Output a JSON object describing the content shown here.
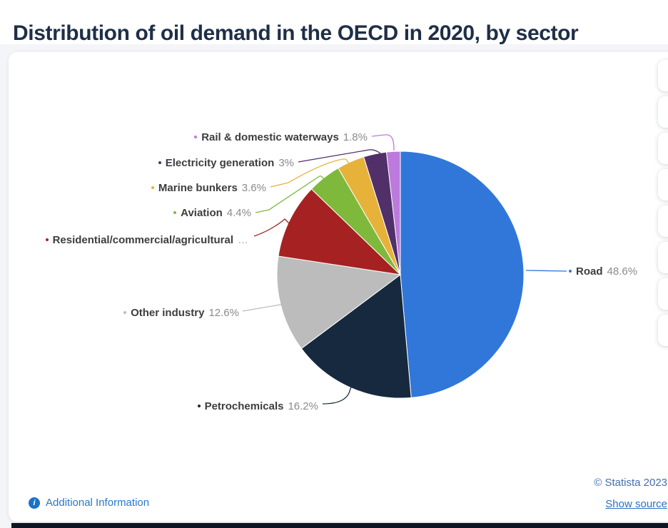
{
  "page": {
    "title": "Distribution of oil demand in the OECD in 2020, by sector"
  },
  "footer": {
    "additional_info": "Additional Information",
    "info_icon_glyph": "i",
    "copyright": "© Statista 2023",
    "show_source": "Show source"
  },
  "toolbar": {
    "side_button_count": 8
  },
  "chart_data": {
    "type": "pie",
    "title": "Distribution of oil demand in the OECD in 2020, by sector",
    "unit": "percent",
    "start_angle_deg": 0,
    "direction": "clockwise",
    "legend": "none",
    "truncation_ellipsis": "…",
    "slices": [
      {
        "label": "Road",
        "value": 48.6,
        "value_label": "48.6%",
        "color": "#3077d9",
        "truncated": false
      },
      {
        "label": "Petrochemicals",
        "value": 16.2,
        "value_label": "16.2%",
        "color": "#16293f",
        "truncated": false
      },
      {
        "label": "Other industry",
        "value": 12.6,
        "value_label": "12.6%",
        "color": "#bcbcbc",
        "truncated": false
      },
      {
        "label": "Residential/commercial/agricultural",
        "value": 9.8,
        "value_label": "",
        "color": "#a62222",
        "truncated": true
      },
      {
        "label": "Aviation",
        "value": 4.4,
        "value_label": "4.4%",
        "color": "#7fb93c",
        "truncated": false
      },
      {
        "label": "Marine bunkers",
        "value": 3.6,
        "value_label": "3.6%",
        "color": "#e7b23a",
        "truncated": false
      },
      {
        "label": "Electricity generation",
        "value": 3,
        "value_label": "3%",
        "color": "#513069",
        "truncated": false
      },
      {
        "label": "Rail & domestic waterways",
        "value": 1.8,
        "value_label": "1.8%",
        "color": "#bd7add",
        "truncated": false
      }
    ]
  }
}
